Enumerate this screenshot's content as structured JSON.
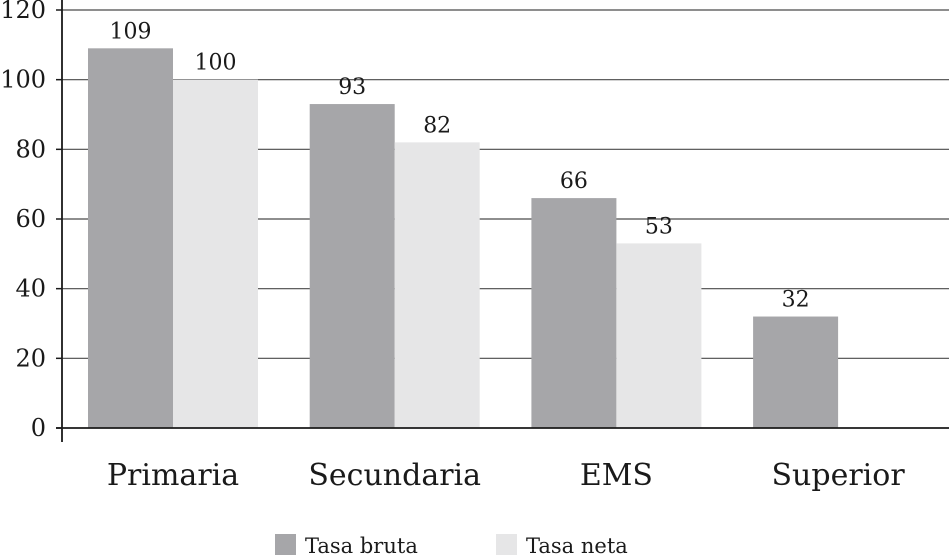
{
  "chart_data": {
    "type": "bar",
    "categories": [
      "Primaria",
      "Secundaria",
      "EMS",
      "Superior"
    ],
    "series": [
      {
        "name": "Tasa bruta",
        "values": [
          109,
          93,
          66,
          32
        ],
        "color": "#a6a6a9"
      },
      {
        "name": "Tasa neta",
        "values": [
          100,
          82,
          53,
          null
        ],
        "color": "#e6e6e7"
      }
    ],
    "data_labels": [
      [
        "109",
        "100"
      ],
      [
        "93",
        "82"
      ],
      [
        "66",
        "53"
      ],
      [
        "32",
        ""
      ]
    ],
    "yticks": [
      "0",
      "20",
      "40",
      "60",
      "80",
      "100",
      "120"
    ],
    "ylim": [
      0,
      120
    ],
    "grid": true,
    "legend_position": "bottom-center",
    "title": "",
    "xlabel": "",
    "ylabel": ""
  }
}
